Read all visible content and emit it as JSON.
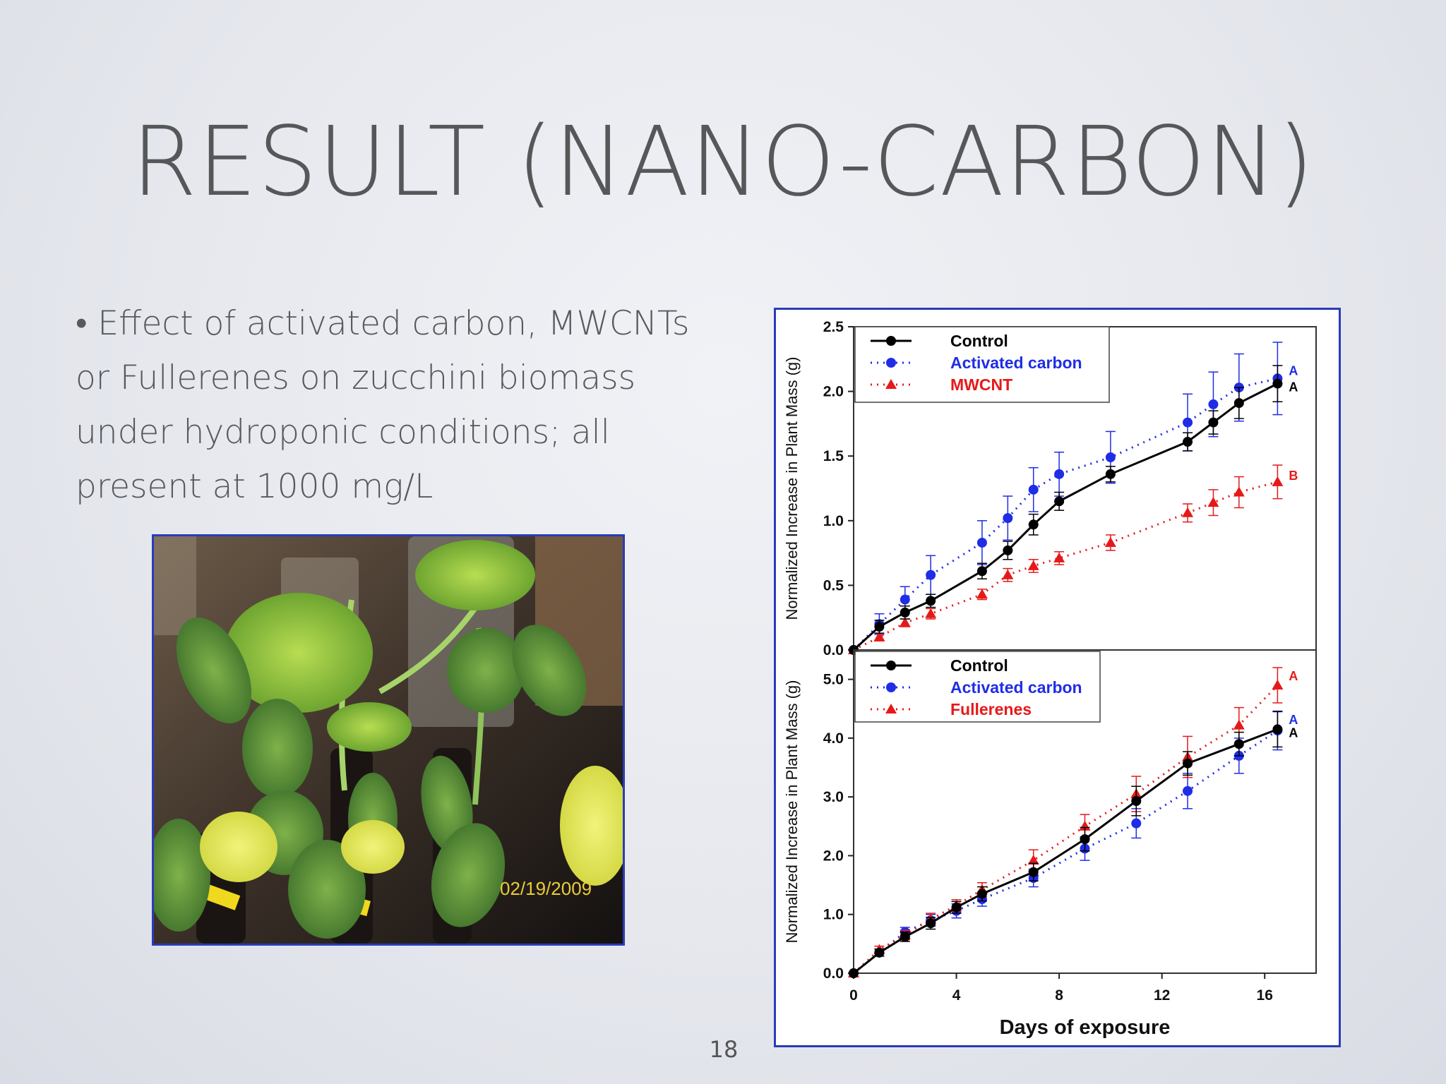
{
  "slide": {
    "title": "RESULT (NANO-CARBON)",
    "bullet": "• Effect of activated carbon, MWCNTs or Fullerenes on zucchini biomass under hydroponic conditions; all present at 1000 mg/L",
    "page_number": "18"
  },
  "photo": {
    "date_stamp": "02/19/2009"
  },
  "colors": {
    "control": "#000000",
    "activated_carbon": "#1f2de6",
    "mwcnt": "#e61919",
    "fullerenes": "#e61919",
    "border": "#2a3cb8"
  },
  "chart_data": [
    {
      "type": "line",
      "ylabel": "Normalized Increase in Plant Mass (g)",
      "xlim": [
        0,
        18
      ],
      "ylim": [
        0,
        2.5
      ],
      "yticks": [
        "0.0",
        "0.5",
        "1.0",
        "1.5",
        "2.0",
        "2.5"
      ],
      "legend_position": "top-left",
      "series": [
        {
          "name": "Control",
          "style": "solid",
          "marker": "circle",
          "color": "#000000",
          "x": [
            0,
            1,
            2,
            3,
            5,
            6,
            7,
            8,
            10,
            13,
            14,
            15,
            16.5
          ],
          "y": [
            0,
            0.18,
            0.29,
            0.38,
            0.61,
            0.77,
            0.97,
            1.15,
            1.36,
            1.61,
            1.76,
            1.91,
            2.06
          ],
          "err": [
            0,
            0.05,
            0.05,
            0.05,
            0.06,
            0.07,
            0.08,
            0.07,
            0.06,
            0.07,
            0.09,
            0.12,
            0.14
          ],
          "label": "A"
        },
        {
          "name": "Activated carbon",
          "style": "dotted",
          "marker": "circle",
          "color": "#1f2de6",
          "x": [
            0,
            1,
            2,
            3,
            5,
            6,
            7,
            8,
            10,
            13,
            14,
            15,
            16.5
          ],
          "y": [
            0,
            0.2,
            0.39,
            0.58,
            0.83,
            1.02,
            1.24,
            1.36,
            1.49,
            1.76,
            1.9,
            2.03,
            2.1
          ],
          "err": [
            0,
            0.08,
            0.1,
            0.15,
            0.17,
            0.17,
            0.17,
            0.17,
            0.2,
            0.22,
            0.25,
            0.26,
            0.28
          ],
          "label": "A"
        },
        {
          "name": "MWCNT",
          "style": "dotted",
          "marker": "triangle",
          "color": "#e61919",
          "x": [
            0,
            1,
            2,
            3,
            5,
            6,
            7,
            8,
            10,
            13,
            14,
            15,
            16.5
          ],
          "y": [
            0,
            0.1,
            0.21,
            0.28,
            0.43,
            0.58,
            0.65,
            0.71,
            0.83,
            1.06,
            1.14,
            1.22,
            1.3
          ],
          "err": [
            0,
            0.03,
            0.03,
            0.04,
            0.04,
            0.05,
            0.05,
            0.05,
            0.06,
            0.07,
            0.1,
            0.12,
            0.13
          ],
          "label": "B"
        }
      ]
    },
    {
      "type": "line",
      "ylabel": "Normalized Increase in Plant Mass (g)",
      "xlabel": "Days of exposure",
      "xlim": [
        0,
        18
      ],
      "ylim": [
        0,
        5.5
      ],
      "xticks": [
        "0",
        "4",
        "8",
        "12",
        "16"
      ],
      "yticks": [
        "0.0",
        "1.0",
        "2.0",
        "3.0",
        "4.0",
        "5.0"
      ],
      "legend_position": "top-left",
      "series": [
        {
          "name": "Control",
          "style": "solid",
          "marker": "circle",
          "color": "#000000",
          "x": [
            0,
            1,
            2,
            3,
            4,
            5,
            7,
            9,
            11,
            13,
            15,
            16.5
          ],
          "y": [
            0,
            0.35,
            0.62,
            0.85,
            1.12,
            1.35,
            1.72,
            2.28,
            2.93,
            3.57,
            3.9,
            4.15
          ],
          "err": [
            0,
            0.06,
            0.08,
            0.1,
            0.1,
            0.12,
            0.15,
            0.2,
            0.25,
            0.2,
            0.2,
            0.3
          ],
          "label": "A"
        },
        {
          "name": "Activated carbon",
          "style": "dotted",
          "marker": "circle",
          "color": "#1f2de6",
          "x": [
            0,
            1,
            2,
            3,
            4,
            5,
            7,
            9,
            11,
            13,
            15,
            16.5
          ],
          "y": [
            0,
            0.35,
            0.7,
            0.9,
            1.06,
            1.26,
            1.62,
            2.12,
            2.55,
            3.1,
            3.7,
            4.13
          ],
          "err": [
            0,
            0.06,
            0.08,
            0.1,
            0.12,
            0.12,
            0.15,
            0.2,
            0.25,
            0.3,
            0.3,
            0.33
          ],
          "label": "A"
        },
        {
          "name": "Fullerenes",
          "style": "dotted",
          "marker": "triangle",
          "color": "#e61919",
          "x": [
            0,
            1,
            2,
            3,
            4,
            5,
            7,
            9,
            11,
            13,
            15,
            16.5
          ],
          "y": [
            0,
            0.4,
            0.65,
            0.92,
            1.15,
            1.42,
            1.92,
            2.5,
            3.05,
            3.68,
            4.22,
            4.9
          ],
          "err": [
            0,
            0.06,
            0.08,
            0.1,
            0.1,
            0.12,
            0.18,
            0.2,
            0.3,
            0.35,
            0.3,
            0.3
          ],
          "label": "A"
        }
      ]
    }
  ]
}
